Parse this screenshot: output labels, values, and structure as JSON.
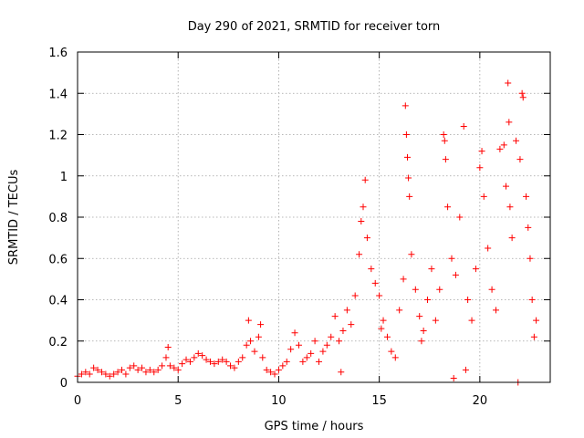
{
  "chart_data": {
    "type": "scatter",
    "title": "Day 290 of 2021, SRMTID for receiver torn",
    "xlabel": "GPS time / hours",
    "ylabel": "SRMTID / TECUs",
    "xlim": [
      0,
      23.5
    ],
    "ylim": [
      0,
      1.6
    ],
    "x_ticks": [
      0,
      5,
      10,
      15,
      20
    ],
    "x_tick_labels": [
      "0",
      "5",
      "10",
      "15",
      "20"
    ],
    "y_ticks": [
      0,
      0.2,
      0.4,
      0.6,
      0.8,
      1.0,
      1.2,
      1.4,
      1.6
    ],
    "y_tick_labels": [
      "0",
      "0.2",
      "0.4",
      "0.6",
      "0.8",
      "1",
      "1.2",
      "1.4",
      "1.6"
    ],
    "grid": true,
    "marker": "+",
    "series": [
      {
        "name": "SRMTID",
        "color": "#ff0000",
        "points": [
          [
            0.0,
            0.03
          ],
          [
            0.2,
            0.04
          ],
          [
            0.4,
            0.05
          ],
          [
            0.6,
            0.04
          ],
          [
            0.8,
            0.07
          ],
          [
            1.0,
            0.06
          ],
          [
            1.2,
            0.05
          ],
          [
            1.4,
            0.04
          ],
          [
            1.6,
            0.03
          ],
          [
            1.8,
            0.04
          ],
          [
            2.0,
            0.05
          ],
          [
            2.2,
            0.06
          ],
          [
            2.4,
            0.04
          ],
          [
            2.6,
            0.07
          ],
          [
            2.8,
            0.08
          ],
          [
            3.0,
            0.06
          ],
          [
            3.2,
            0.07
          ],
          [
            3.4,
            0.05
          ],
          [
            3.6,
            0.06
          ],
          [
            3.8,
            0.05
          ],
          [
            4.0,
            0.06
          ],
          [
            4.2,
            0.08
          ],
          [
            4.4,
            0.12
          ],
          [
            4.5,
            0.17
          ],
          [
            4.6,
            0.08
          ],
          [
            4.8,
            0.07
          ],
          [
            5.0,
            0.06
          ],
          [
            5.2,
            0.09
          ],
          [
            5.4,
            0.11
          ],
          [
            5.6,
            0.1
          ],
          [
            5.8,
            0.12
          ],
          [
            6.0,
            0.14
          ],
          [
            6.2,
            0.13
          ],
          [
            6.4,
            0.11
          ],
          [
            6.6,
            0.1
          ],
          [
            6.8,
            0.09
          ],
          [
            7.0,
            0.1
          ],
          [
            7.2,
            0.11
          ],
          [
            7.4,
            0.1
          ],
          [
            7.6,
            0.08
          ],
          [
            7.8,
            0.07
          ],
          [
            8.0,
            0.1
          ],
          [
            8.2,
            0.12
          ],
          [
            8.4,
            0.18
          ],
          [
            8.5,
            0.3
          ],
          [
            8.6,
            0.2
          ],
          [
            8.8,
            0.15
          ],
          [
            9.0,
            0.22
          ],
          [
            9.1,
            0.28
          ],
          [
            9.2,
            0.12
          ],
          [
            9.4,
            0.06
          ],
          [
            9.6,
            0.05
          ],
          [
            9.8,
            0.04
          ],
          [
            10.0,
            0.06
          ],
          [
            10.2,
            0.08
          ],
          [
            10.4,
            0.1
          ],
          [
            10.6,
            0.16
          ],
          [
            10.8,
            0.24
          ],
          [
            11.0,
            0.18
          ],
          [
            11.2,
            0.1
          ],
          [
            11.4,
            0.12
          ],
          [
            11.6,
            0.14
          ],
          [
            11.8,
            0.2
          ],
          [
            12.0,
            0.1
          ],
          [
            12.2,
            0.15
          ],
          [
            12.4,
            0.18
          ],
          [
            12.6,
            0.22
          ],
          [
            12.8,
            0.32
          ],
          [
            13.0,
            0.2
          ],
          [
            13.2,
            0.25
          ],
          [
            13.4,
            0.35
          ],
          [
            13.6,
            0.28
          ],
          [
            13.8,
            0.42
          ],
          [
            14.0,
            0.62
          ],
          [
            14.1,
            0.78
          ],
          [
            14.2,
            0.85
          ],
          [
            14.3,
            0.98
          ],
          [
            14.4,
            0.7
          ],
          [
            14.6,
            0.55
          ],
          [
            14.8,
            0.48
          ],
          [
            15.0,
            0.42
          ],
          [
            15.2,
            0.3
          ],
          [
            15.4,
            0.22
          ],
          [
            15.6,
            0.15
          ],
          [
            15.8,
            0.12
          ],
          [
            16.0,
            0.35
          ],
          [
            16.2,
            0.5
          ],
          [
            16.3,
            1.34
          ],
          [
            16.35,
            1.2
          ],
          [
            16.4,
            1.09
          ],
          [
            16.45,
            0.99
          ],
          [
            16.5,
            0.9
          ],
          [
            16.6,
            0.62
          ],
          [
            16.8,
            0.45
          ],
          [
            17.0,
            0.32
          ],
          [
            17.2,
            0.25
          ],
          [
            17.4,
            0.4
          ],
          [
            17.6,
            0.55
          ],
          [
            17.8,
            0.3
          ],
          [
            18.0,
            0.45
          ],
          [
            18.2,
            1.2
          ],
          [
            18.25,
            1.17
          ],
          [
            18.3,
            1.08
          ],
          [
            18.4,
            0.85
          ],
          [
            18.6,
            0.6
          ],
          [
            18.8,
            0.52
          ],
          [
            19.0,
            0.8
          ],
          [
            19.2,
            1.24
          ],
          [
            19.4,
            0.4
          ],
          [
            19.6,
            0.3
          ],
          [
            19.8,
            0.55
          ],
          [
            20.0,
            1.04
          ],
          [
            20.1,
            1.12
          ],
          [
            20.2,
            0.9
          ],
          [
            20.4,
            0.65
          ],
          [
            20.6,
            0.45
          ],
          [
            20.8,
            0.35
          ],
          [
            21.0,
            1.13
          ],
          [
            21.2,
            1.15
          ],
          [
            21.3,
            0.95
          ],
          [
            21.4,
            1.45
          ],
          [
            21.45,
            1.26
          ],
          [
            21.5,
            0.85
          ],
          [
            21.6,
            0.7
          ],
          [
            21.8,
            1.17
          ],
          [
            22.0,
            1.08
          ],
          [
            22.1,
            1.4
          ],
          [
            22.15,
            1.38
          ],
          [
            22.3,
            0.9
          ],
          [
            22.4,
            0.75
          ],
          [
            22.5,
            0.6
          ],
          [
            22.6,
            0.4
          ],
          [
            22.7,
            0.22
          ],
          [
            22.8,
            0.3
          ],
          [
            21.9,
            0.0
          ],
          [
            19.3,
            0.06
          ],
          [
            18.7,
            0.02
          ],
          [
            17.1,
            0.2
          ],
          [
            15.1,
            0.26
          ],
          [
            13.1,
            0.05
          ]
        ]
      }
    ]
  }
}
